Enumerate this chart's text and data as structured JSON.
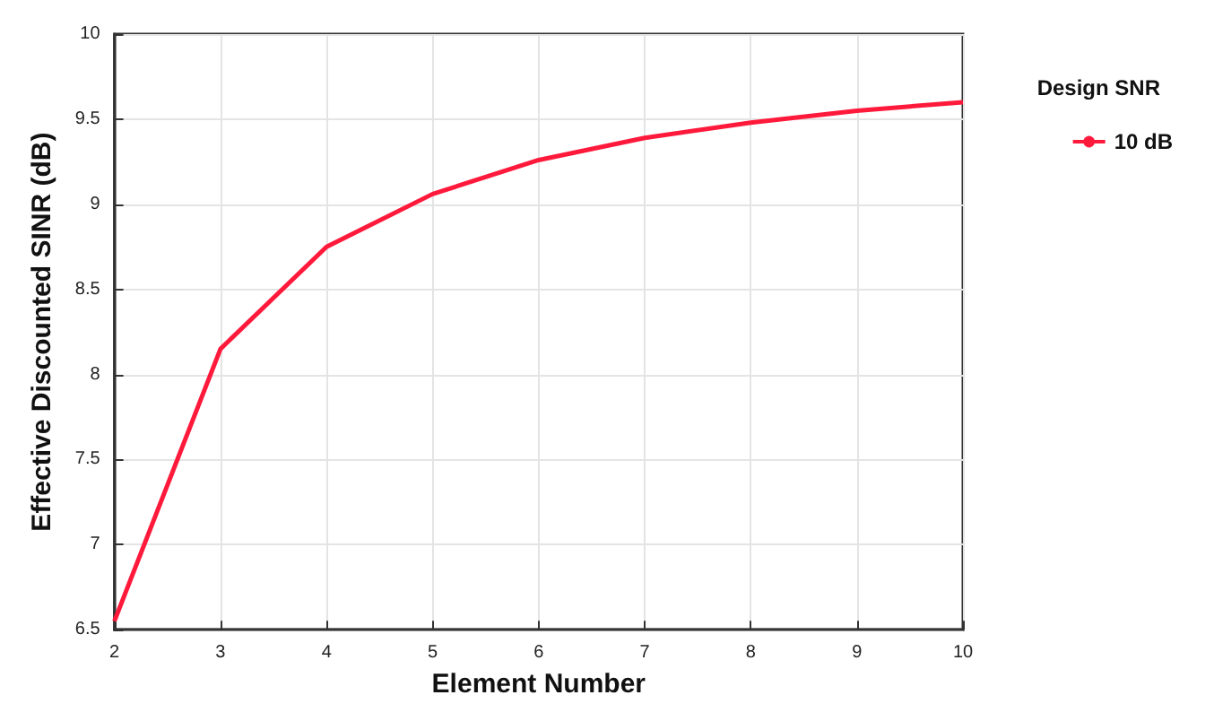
{
  "chart_data": {
    "type": "line",
    "xlabel": "Element Number",
    "ylabel": "Effective Discounted SINR (dB)",
    "legend_title": "Design SNR",
    "x": [
      2,
      3,
      4,
      5,
      6,
      7,
      8,
      9,
      10
    ],
    "series": [
      {
        "name": "10 dB",
        "color": "#ff1a3c",
        "values": [
          6.55,
          8.15,
          8.75,
          9.06,
          9.26,
          9.39,
          9.48,
          9.55,
          9.6
        ]
      }
    ],
    "xlim": [
      2,
      10
    ],
    "xticks": [
      2,
      3,
      4,
      5,
      6,
      7,
      8,
      9,
      10
    ],
    "ylim": [
      6.5,
      10
    ],
    "yticks": [
      6.5,
      7,
      7.5,
      8,
      8.5,
      9,
      9.5,
      10
    ],
    "grid": true,
    "legend": "right",
    "marker": "none",
    "line_style": "solid"
  }
}
